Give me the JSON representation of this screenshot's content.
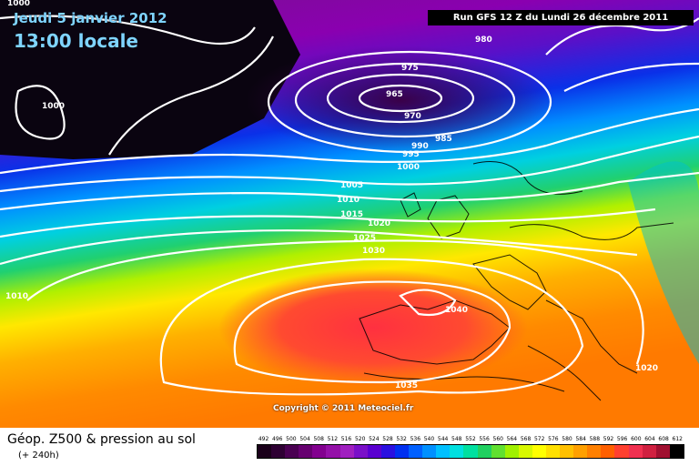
{
  "header": {
    "date": "Jeudi 5 janvier 2012",
    "time": "13:00 locale",
    "run": "Run GFS 12 Z du Lundi 26 décembre 2011"
  },
  "copyright": "Copyright © 2011 Meteociel.fr",
  "legend": {
    "title": "Géop. Z500 & pression au sol",
    "subtitle": "(+ 240h)",
    "ticks": [
      "492",
      "496",
      "500",
      "504",
      "508",
      "512",
      "516",
      "520",
      "524",
      "528",
      "532",
      "536",
      "540",
      "544",
      "548",
      "552",
      "556",
      "560",
      "564",
      "568",
      "572",
      "576",
      "580",
      "584",
      "588",
      "592",
      "596",
      "600",
      "604",
      "608",
      "612"
    ],
    "colors": [
      "#1a001a",
      "#2e0033",
      "#4a0052",
      "#660070",
      "#82008f",
      "#9410a8",
      "#a020c0",
      "#7a10c8",
      "#5a00d0",
      "#2a10e0",
      "#0030f0",
      "#0060ff",
      "#0090ff",
      "#00c0ff",
      "#00e0e0",
      "#00e0a0",
      "#20d060",
      "#60e030",
      "#a0f000",
      "#d8f800",
      "#ffff00",
      "#ffe000",
      "#ffc000",
      "#ffa000",
      "#ff8000",
      "#ff6000",
      "#ff4030",
      "#f03050",
      "#d02040",
      "#a01030",
      "#000000"
    ]
  },
  "isobars": [
    "1000",
    "980",
    "975",
    "965",
    "970",
    "985",
    "990",
    "995",
    "1000",
    "1005",
    "1010",
    "1015",
    "1020",
    "1025",
    "1030",
    "1040",
    "1035",
    "1010",
    "1000",
    "1020"
  ]
}
